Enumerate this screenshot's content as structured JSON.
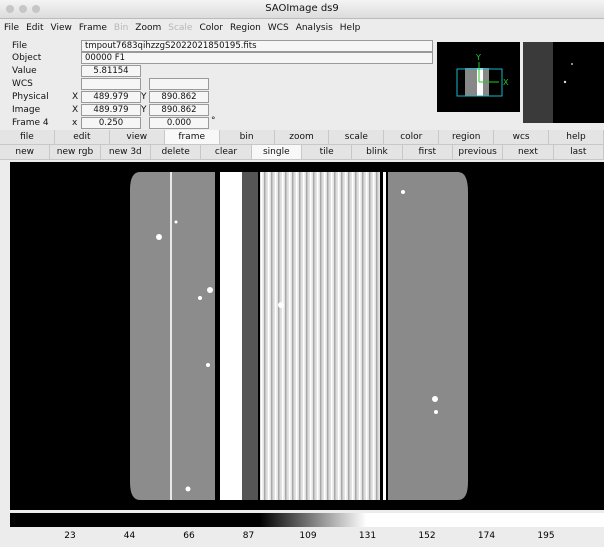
{
  "window": {
    "title": "SAOImage ds9"
  },
  "menu": [
    "File",
    "Edit",
    "View",
    "Frame",
    "Bin",
    "Zoom",
    "Scale",
    "Color",
    "Region",
    "WCS",
    "Analysis",
    "Help"
  ],
  "info": {
    "file_label": "File",
    "file": "tmpout7683qihzzgS2022021850195.fits",
    "object_label": "Object",
    "object": "00000 F1",
    "value_label": "Value",
    "value": "5.81154",
    "wcs_label": "WCS",
    "physical_label": "Physical",
    "physical_x_label": "X",
    "physical_x": "489.979",
    "physical_y_label": "Y",
    "physical_y": "890.862",
    "image_label": "Image",
    "image_x_label": "X",
    "image_x": "489.979",
    "image_y_label": "Y",
    "image_y": "890.862",
    "frame_label": "Frame 4",
    "frame_x_label": "x",
    "frame_zoom": "0.250",
    "frame_angle": "0.000",
    "degree": "°"
  },
  "panner": {
    "x_label": "X",
    "y_label": "Y"
  },
  "buttons_main": [
    "file",
    "edit",
    "view",
    "frame",
    "bin",
    "zoom",
    "scale",
    "color",
    "region",
    "wcs",
    "help"
  ],
  "buttons_frame": [
    "new",
    "new rgb",
    "new 3d",
    "delete",
    "clear",
    "single",
    "tile",
    "blink",
    "first",
    "previous",
    "next",
    "last"
  ],
  "colorbar": {
    "ticks": [
      "23",
      "44",
      "66",
      "87",
      "109",
      "131",
      "152",
      "174",
      "195"
    ]
  }
}
